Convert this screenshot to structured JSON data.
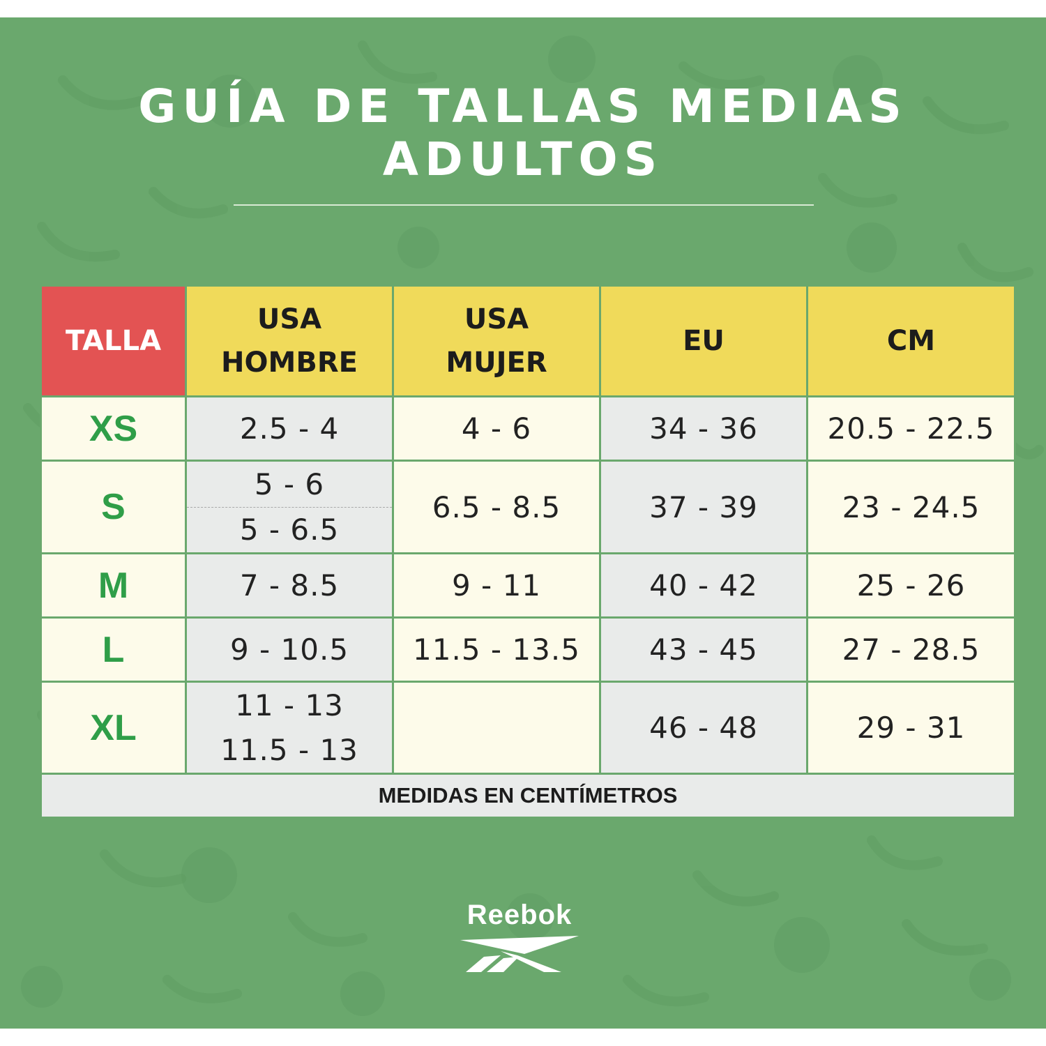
{
  "title": {
    "line1": "GUÍA DE TALLAS MEDIAS",
    "line2": "ADULTOS"
  },
  "colors": {
    "background": "#6aa86d",
    "header_yellow": "#f0da5a",
    "header_red": "#e35353",
    "size_green": "#2f9e48",
    "cell_gray": "#e9ebea",
    "cell_cream": "#fdfbea"
  },
  "table": {
    "headers": {
      "talla": "TALLA",
      "usa_hombre": [
        "USA",
        "HOMBRE"
      ],
      "usa_mujer": [
        "USA",
        "MUJER"
      ],
      "eu": "EU",
      "cm": "CM"
    },
    "rows": [
      {
        "size": "XS",
        "usa_hombre": [
          "2.5 - 4"
        ],
        "usa_mujer": "4 - 6",
        "eu": "34 - 36",
        "cm": "20.5 - 22.5"
      },
      {
        "size": "S",
        "usa_hombre": [
          "5 - 6",
          "5 -  6.5"
        ],
        "usa_mujer": "6.5 - 8.5",
        "eu": "37 - 39",
        "cm": "23 - 24.5"
      },
      {
        "size": "M",
        "usa_hombre": [
          "7 - 8.5"
        ],
        "usa_mujer": "9 - 11",
        "eu": "40 - 42",
        "cm": "25 - 26"
      },
      {
        "size": "L",
        "usa_hombre": [
          "9 - 10.5"
        ],
        "usa_mujer": "11.5 - 13.5",
        "eu": "43 - 45",
        "cm": "27 - 28.5"
      },
      {
        "size": "XL",
        "usa_hombre": [
          "11 - 13",
          "11.5 - 13"
        ],
        "usa_mujer": "",
        "eu": "46 - 48",
        "cm": "29 - 31"
      }
    ],
    "footer": "MEDIDAS EN CENTÍMETROS"
  },
  "logo": {
    "wordmark": "Reebok",
    "icon": "reebok-vector-icon"
  }
}
